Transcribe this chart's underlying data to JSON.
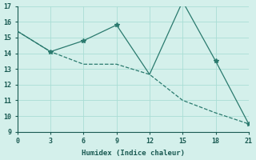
{
  "background_color": "#d4f0eb",
  "line1_x": [
    0,
    3,
    6,
    9,
    12,
    15,
    18,
    21
  ],
  "line1_y": [
    15.4,
    14.1,
    13.3,
    13.3,
    12.65,
    11.0,
    10.2,
    9.5
  ],
  "line2_x": [
    0,
    3,
    6,
    9,
    12,
    15,
    18,
    21
  ],
  "line2_y": [
    15.4,
    14.1,
    14.8,
    15.8,
    12.65,
    17.3,
    13.5,
    9.5
  ],
  "marker_x": [
    3,
    6,
    9,
    15,
    18,
    21
  ],
  "marker_y": [
    14.1,
    14.8,
    15.8,
    17.3,
    13.5,
    9.5
  ],
  "line_color": "#2a7a6e",
  "xlabel": "Humidex (Indice chaleur)",
  "xlim": [
    0,
    21
  ],
  "ylim": [
    9,
    17
  ],
  "xticks": [
    0,
    3,
    6,
    9,
    12,
    15,
    18,
    21
  ],
  "yticks": [
    9,
    10,
    11,
    12,
    13,
    14,
    15,
    16,
    17
  ],
  "grid_color": "#aaddd5",
  "font_color": "#1a5a52"
}
